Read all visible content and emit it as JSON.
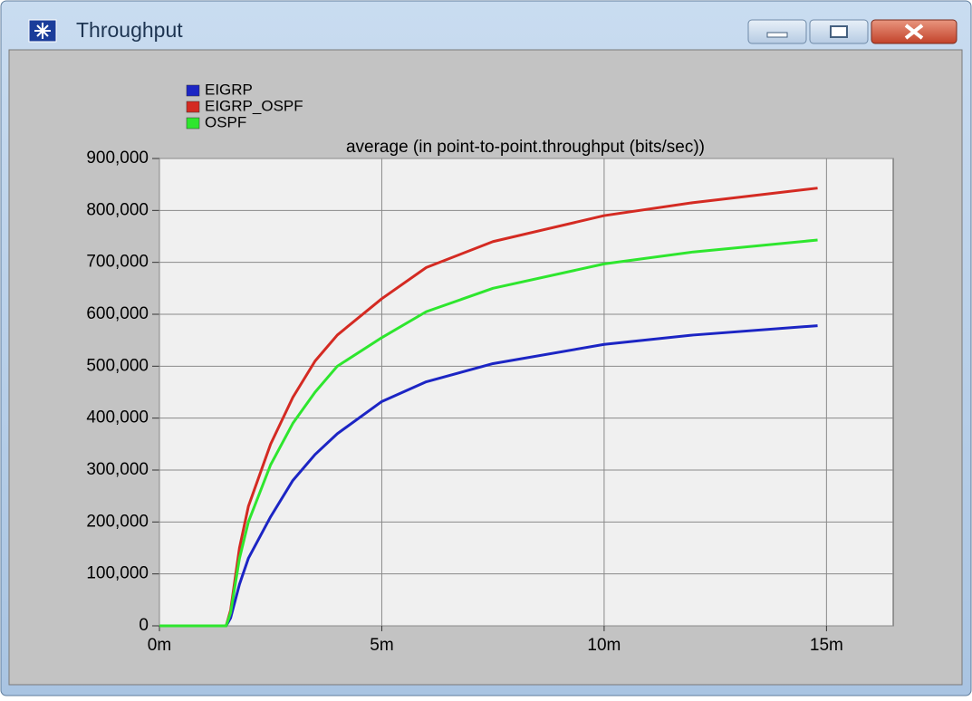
{
  "window": {
    "title": "Throughput"
  },
  "chart_data": {
    "type": "line",
    "title": "average (in point-to-point.throughput (bits/sec))",
    "x": [
      0,
      1.5,
      1.6,
      1.8,
      2,
      2.5,
      3,
      3.5,
      4,
      5,
      6,
      7.5,
      10,
      12,
      14.8
    ],
    "series": [
      {
        "name": "EIGRP",
        "color": "#1c25c4",
        "values": [
          0,
          0,
          15000,
          80000,
          130000,
          210000,
          280000,
          330000,
          370000,
          432000,
          470000,
          505000,
          542000,
          560000,
          578000
        ]
      },
      {
        "name": "EIGRP_OSPF",
        "color": "#d42a22",
        "values": [
          0,
          0,
          30000,
          150000,
          230000,
          350000,
          440000,
          510000,
          560000,
          630000,
          690000,
          740000,
          790000,
          815000,
          843000
        ]
      },
      {
        "name": "OSPF",
        "color": "#2ee62e",
        "values": [
          0,
          0,
          25000,
          130000,
          200000,
          310000,
          390000,
          450000,
          500000,
          555000,
          605000,
          650000,
          697000,
          720000,
          743000
        ]
      }
    ],
    "xlim": [
      0,
      16.5
    ],
    "xticks": [
      {
        "value": 0,
        "label": "0m"
      },
      {
        "value": 5,
        "label": "5m"
      },
      {
        "value": 10,
        "label": "10m"
      },
      {
        "value": 15,
        "label": "15m"
      }
    ],
    "ylim": [
      0,
      900000
    ],
    "yticks": [
      0,
      {
        "value": 100000,
        "label": "100,000"
      },
      {
        "value": 200000,
        "label": "200,000"
      },
      {
        "value": 300000,
        "label": "300,000"
      },
      {
        "value": 400000,
        "label": "400,000"
      },
      {
        "value": 500000,
        "label": "500,000"
      },
      {
        "value": 600000,
        "label": "600,000"
      },
      {
        "value": 700000,
        "label": "700,000"
      },
      {
        "value": 800000,
        "label": "800,000"
      },
      {
        "value": 900000,
        "label": "900,000"
      }
    ],
    "grid": true
  }
}
